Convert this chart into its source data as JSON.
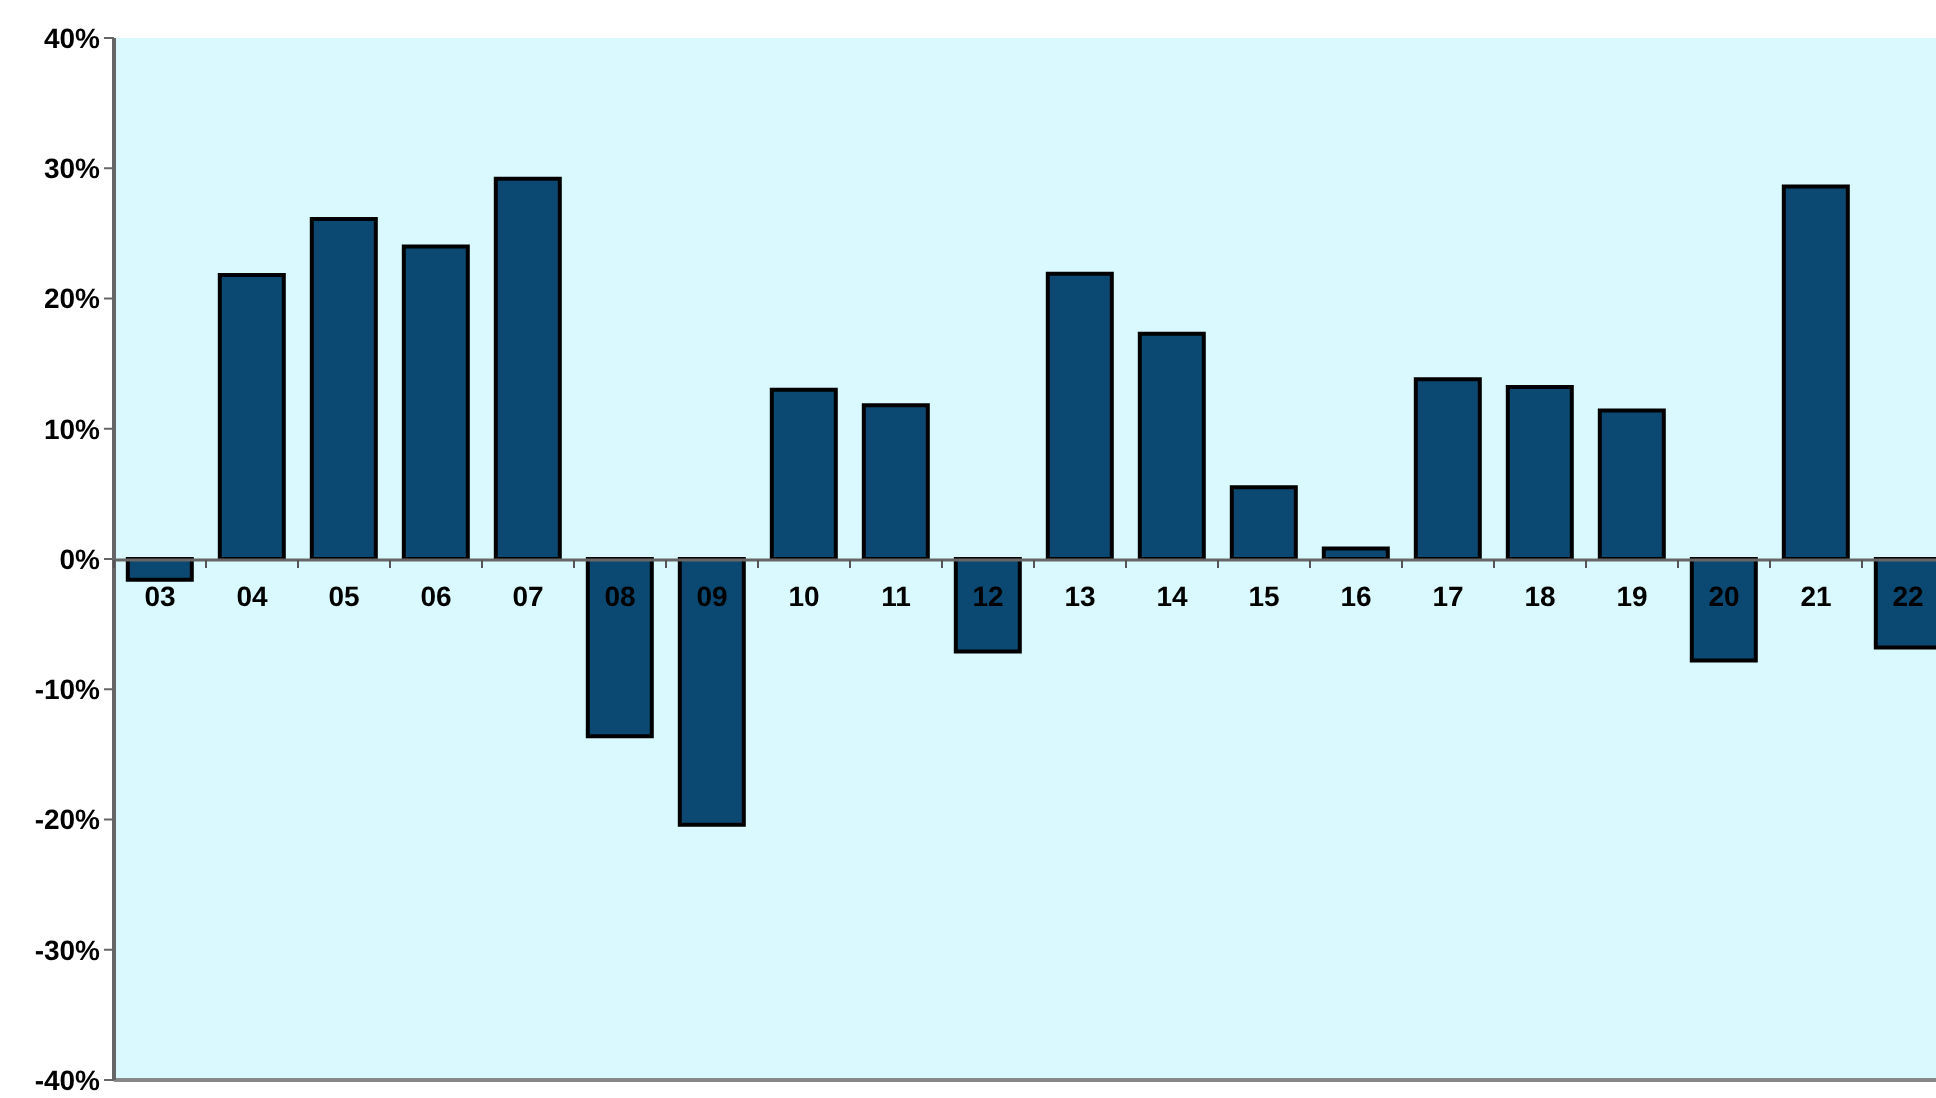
{
  "chart_data": {
    "type": "bar",
    "categories": [
      "03",
      "04",
      "05",
      "06",
      "07",
      "08",
      "09",
      "10",
      "11",
      "12",
      "13",
      "14",
      "15",
      "16",
      "17",
      "18",
      "19",
      "20",
      "21",
      "22"
    ],
    "values": [
      -1.6,
      21.8,
      26.1,
      24.0,
      29.2,
      -13.6,
      -20.4,
      13.0,
      11.8,
      -7.1,
      21.9,
      17.3,
      5.5,
      0.8,
      13.8,
      13.2,
      11.4,
      -7.8,
      28.6,
      -6.8
    ],
    "color": "#0b4872",
    "ylim": [
      -40,
      40
    ],
    "yticks": [
      {
        "value": -40,
        "label": "-40%"
      },
      {
        "value": -30,
        "label": "-30%"
      },
      {
        "value": -20,
        "label": "-20%"
      },
      {
        "value": -10,
        "label": "-10%"
      },
      {
        "value": 0,
        "label": "0%"
      },
      {
        "value": 10,
        "label": "10%"
      },
      {
        "value": 20,
        "label": "20%"
      },
      {
        "value": 30,
        "label": "30%"
      },
      {
        "value": 40,
        "label": "40%"
      }
    ],
    "grid": false,
    "legend": false
  }
}
